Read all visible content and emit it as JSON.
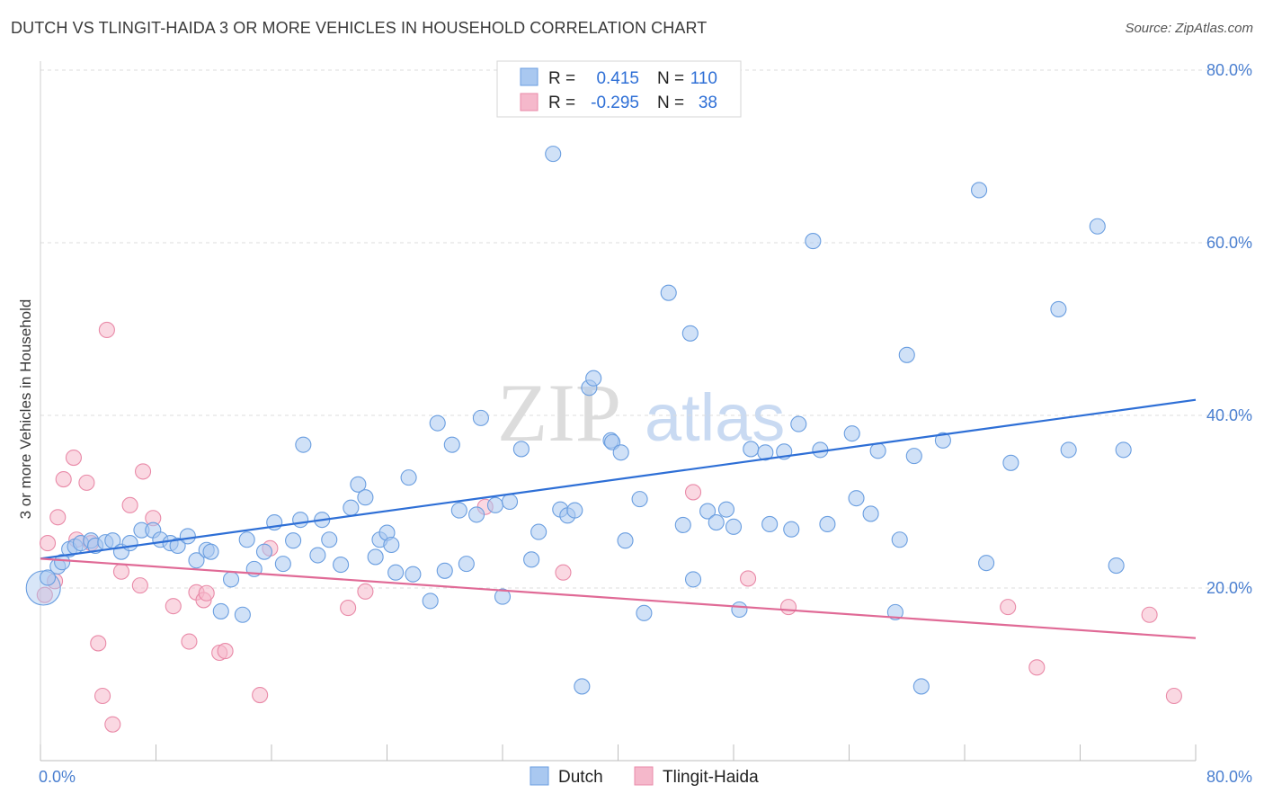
{
  "title": "DUTCH VS TLINGIT-HAIDA 3 OR MORE VEHICLES IN HOUSEHOLD CORRELATION CHART",
  "source": "Source: ZipAtlas.com",
  "watermark": {
    "zip": "ZIP",
    "atlas": "atlas"
  },
  "colors": {
    "dutch_fill": "#a9c8f0",
    "dutch_stroke": "#6a9ee0",
    "dutch_line": "#2e6fd6",
    "tlingit_fill": "#f5b8cb",
    "tlingit_stroke": "#e98aa8",
    "tlingit_line": "#e06a96",
    "grid": "#dcdcdc",
    "tick_label": "#4a7fd0"
  },
  "legend": {
    "rows": [
      {
        "r_label": "R =",
        "r_value": "0.415",
        "n_label": "N =",
        "n_value": "110"
      },
      {
        "r_label": "R =",
        "r_value": "-0.295",
        "n_label": "N =",
        "n_value": "38"
      }
    ]
  },
  "bottom_legend": [
    "Dutch",
    "Tlingit-Haida"
  ],
  "chart_data": {
    "type": "scatter",
    "title": "DUTCH VS TLINGIT-HAIDA 3 OR MORE VEHICLES IN HOUSEHOLD CORRELATION CHART",
    "xlabel": "",
    "ylabel": "3 or more Vehicles in Household",
    "xlim": [
      0,
      80
    ],
    "ylim": [
      0,
      80
    ],
    "x_tick_labels": [
      "0.0%",
      "80.0%"
    ],
    "y_ticks": [
      20,
      40,
      60,
      80
    ],
    "y_tick_labels": [
      "20.0%",
      "40.0%",
      "60.0%",
      "80.0%"
    ],
    "grid": true,
    "legend_position": "top-center",
    "series": [
      {
        "name": "Dutch",
        "r": 0.415,
        "n": 110,
        "trend": {
          "x": [
            0,
            80
          ],
          "y": [
            23.4,
            41.8
          ]
        },
        "points": [
          [
            0.2,
            20.0
          ],
          [
            0.5,
            21.2
          ],
          [
            1.2,
            22.5
          ],
          [
            1.5,
            23.0
          ],
          [
            2.0,
            24.5
          ],
          [
            2.4,
            24.8
          ],
          [
            2.8,
            25.2
          ],
          [
            3.5,
            25.5
          ],
          [
            3.8,
            24.9
          ],
          [
            4.5,
            25.3
          ],
          [
            5.0,
            25.5
          ],
          [
            5.6,
            24.2
          ],
          [
            6.2,
            25.2
          ],
          [
            7.0,
            26.7
          ],
          [
            7.8,
            26.7
          ],
          [
            8.3,
            25.6
          ],
          [
            9.0,
            25.2
          ],
          [
            9.5,
            24.9
          ],
          [
            10.2,
            26.0
          ],
          [
            10.8,
            23.2
          ],
          [
            11.5,
            24.4
          ],
          [
            11.8,
            24.2
          ],
          [
            12.5,
            17.3
          ],
          [
            13.2,
            21.0
          ],
          [
            14.0,
            16.9
          ],
          [
            14.3,
            25.6
          ],
          [
            14.8,
            22.2
          ],
          [
            15.5,
            24.2
          ],
          [
            16.2,
            27.6
          ],
          [
            16.8,
            22.8
          ],
          [
            17.5,
            25.5
          ],
          [
            18.0,
            27.9
          ],
          [
            18.2,
            36.6
          ],
          [
            19.2,
            23.8
          ],
          [
            19.5,
            27.9
          ],
          [
            20.0,
            25.6
          ],
          [
            20.8,
            22.7
          ],
          [
            21.5,
            29.3
          ],
          [
            22.0,
            32.0
          ],
          [
            22.5,
            30.5
          ],
          [
            23.2,
            23.6
          ],
          [
            23.5,
            25.6
          ],
          [
            24.0,
            26.4
          ],
          [
            24.3,
            25.0
          ],
          [
            24.6,
            21.8
          ],
          [
            25.5,
            32.8
          ],
          [
            25.8,
            21.6
          ],
          [
            27.0,
            18.5
          ],
          [
            27.5,
            39.1
          ],
          [
            28.0,
            22.0
          ],
          [
            28.5,
            36.6
          ],
          [
            29.0,
            29.0
          ],
          [
            29.5,
            22.8
          ],
          [
            30.2,
            28.5
          ],
          [
            30.5,
            39.7
          ],
          [
            31.5,
            29.6
          ],
          [
            32.0,
            19.0
          ],
          [
            32.5,
            30.0
          ],
          [
            33.3,
            36.1
          ],
          [
            34.0,
            23.3
          ],
          [
            34.5,
            26.5
          ],
          [
            35.5,
            70.3
          ],
          [
            36.0,
            29.1
          ],
          [
            36.5,
            28.4
          ],
          [
            37.0,
            29.0
          ],
          [
            37.5,
            8.6
          ],
          [
            38.0,
            43.2
          ],
          [
            38.3,
            44.3
          ],
          [
            39.5,
            37.1
          ],
          [
            39.6,
            36.9
          ],
          [
            40.2,
            35.7
          ],
          [
            40.5,
            25.5
          ],
          [
            41.5,
            30.3
          ],
          [
            41.8,
            17.1
          ],
          [
            43.5,
            54.2
          ],
          [
            44.5,
            27.3
          ],
          [
            45.0,
            49.5
          ],
          [
            45.2,
            21.0
          ],
          [
            46.2,
            28.9
          ],
          [
            46.8,
            27.6
          ],
          [
            47.5,
            29.1
          ],
          [
            48.0,
            27.1
          ],
          [
            48.4,
            17.5
          ],
          [
            49.2,
            36.1
          ],
          [
            50.2,
            35.7
          ],
          [
            50.5,
            27.4
          ],
          [
            51.5,
            35.8
          ],
          [
            52.0,
            26.8
          ],
          [
            52.5,
            39.0
          ],
          [
            53.5,
            60.2
          ],
          [
            54.0,
            36.0
          ],
          [
            54.5,
            27.4
          ],
          [
            56.2,
            37.9
          ],
          [
            56.5,
            30.4
          ],
          [
            57.5,
            28.6
          ],
          [
            58.0,
            35.9
          ],
          [
            59.2,
            17.2
          ],
          [
            59.5,
            25.6
          ],
          [
            60.0,
            47.0
          ],
          [
            60.5,
            35.3
          ],
          [
            61.0,
            8.6
          ],
          [
            62.5,
            37.1
          ],
          [
            65.0,
            66.1
          ],
          [
            65.5,
            22.9
          ],
          [
            67.2,
            34.5
          ],
          [
            70.5,
            52.3
          ],
          [
            71.2,
            36.0
          ],
          [
            73.2,
            61.9
          ],
          [
            74.5,
            22.6
          ],
          [
            75.0,
            36.0
          ]
        ],
        "sizes": {
          "0.2,20.0": "large"
        }
      },
      {
        "name": "Tlingit-Haida",
        "r": -0.295,
        "n": 38,
        "trend": {
          "x": [
            0,
            80
          ],
          "y": [
            23.4,
            14.2
          ]
        },
        "points": [
          [
            0.3,
            19.2
          ],
          [
            0.5,
            25.2
          ],
          [
            1.0,
            20.8
          ],
          [
            1.2,
            28.2
          ],
          [
            1.6,
            32.6
          ],
          [
            2.3,
            35.1
          ],
          [
            2.5,
            25.6
          ],
          [
            3.2,
            32.2
          ],
          [
            3.5,
            25.2
          ],
          [
            4.0,
            13.6
          ],
          [
            4.3,
            7.5
          ],
          [
            4.6,
            49.9
          ],
          [
            5.0,
            4.2
          ],
          [
            5.6,
            21.9
          ],
          [
            6.2,
            29.6
          ],
          [
            6.9,
            20.3
          ],
          [
            7.1,
            33.5
          ],
          [
            7.8,
            28.1
          ],
          [
            9.2,
            17.9
          ],
          [
            10.3,
            13.8
          ],
          [
            10.8,
            19.5
          ],
          [
            11.3,
            18.6
          ],
          [
            11.5,
            19.4
          ],
          [
            12.4,
            12.5
          ],
          [
            12.8,
            12.7
          ],
          [
            15.2,
            7.6
          ],
          [
            15.9,
            24.6
          ],
          [
            21.3,
            17.7
          ],
          [
            22.5,
            19.6
          ],
          [
            30.8,
            29.4
          ],
          [
            36.2,
            21.8
          ],
          [
            45.2,
            31.1
          ],
          [
            49.0,
            21.1
          ],
          [
            51.8,
            17.8
          ],
          [
            67.0,
            17.8
          ],
          [
            69.0,
            10.8
          ],
          [
            76.8,
            16.9
          ],
          [
            78.5,
            7.5
          ]
        ]
      }
    ]
  }
}
